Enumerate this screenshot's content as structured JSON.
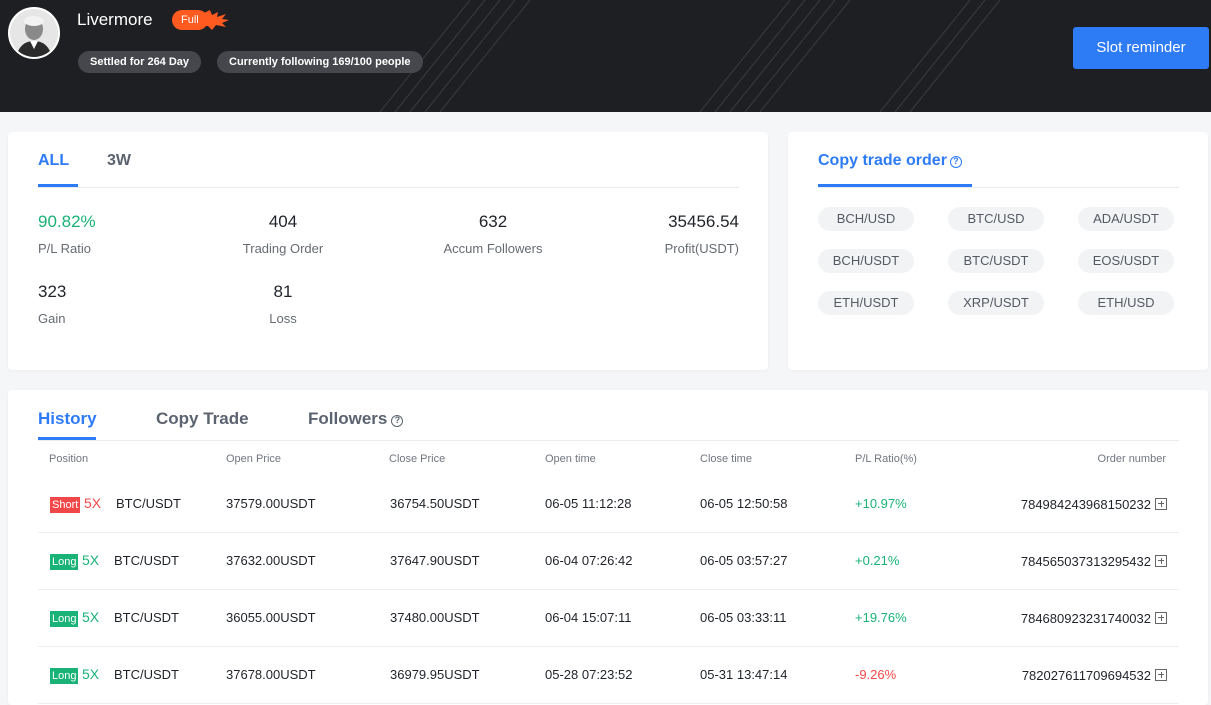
{
  "profile": {
    "name": "Livermore",
    "badge": "Full",
    "tags": [
      "Settled for 264 Day",
      "Currently following 169/100 people"
    ],
    "slot_button": "Slot reminder"
  },
  "stats_card": {
    "tabs": [
      "ALL",
      "3W"
    ],
    "stats": [
      {
        "value": "90.82%",
        "label": "P/L Ratio"
      },
      {
        "value": "404",
        "label": "Trading Order"
      },
      {
        "value": "632",
        "label": "Accum Followers"
      },
      {
        "value": "35456.54",
        "label": "Profit(USDT)"
      },
      {
        "value": "323",
        "label": "Gain"
      },
      {
        "value": "81",
        "label": "Loss"
      }
    ]
  },
  "copy_card": {
    "title": "Copy trade order",
    "help_icon": "?",
    "pairs": [
      "BCH/USD",
      "BTC/USD",
      "ADA/USDT",
      "BCH/USDT",
      "BTC/USDT",
      "EOS/USDT",
      "ETH/USDT",
      "XRP/USDT",
      "ETH/USD"
    ]
  },
  "history": {
    "tabs": [
      "History",
      "Copy Trade",
      "Followers"
    ],
    "help_icon": "?",
    "columns": [
      "Position",
      "Open Price",
      "Close Price",
      "Open time",
      "Close time",
      "P/L Ratio(%)",
      "Order number"
    ],
    "rows": [
      {
        "direction": "Short",
        "leverage": "5X",
        "pair": "BTC/USDT",
        "open_price": "37579.00USDT",
        "close_price": "36754.50USDT",
        "open_time": "06-05 11:12:28",
        "close_time": "06-05 12:50:58",
        "pl": "+10.97%",
        "order": "784984243968150232"
      },
      {
        "direction": "Long",
        "leverage": "5X",
        "pair": "BTC/USDT",
        "open_price": "37632.00USDT",
        "close_price": "37647.90USDT",
        "open_time": "06-04 07:26:42",
        "close_time": "06-05 03:57:27",
        "pl": "+0.21%",
        "order": "784565037313295432"
      },
      {
        "direction": "Long",
        "leverage": "5X",
        "pair": "BTC/USDT",
        "open_price": "36055.00USDT",
        "close_price": "37480.00USDT",
        "open_time": "06-04 15:07:11",
        "close_time": "06-05 03:33:11",
        "pl": "+19.76%",
        "order": "784680923231740032"
      },
      {
        "direction": "Long",
        "leverage": "5X",
        "pair": "BTC/USDT",
        "open_price": "37678.00USDT",
        "close_price": "36979.95USDT",
        "open_time": "05-28 07:23:52",
        "close_time": "05-31 13:47:14",
        "pl": "-9.26%",
        "order": "782027611709694532"
      }
    ]
  },
  "colors": {
    "accent": "#2e7bf6",
    "positive": "#19b277",
    "negative": "#f04848",
    "badge": "#ff5a1f"
  }
}
